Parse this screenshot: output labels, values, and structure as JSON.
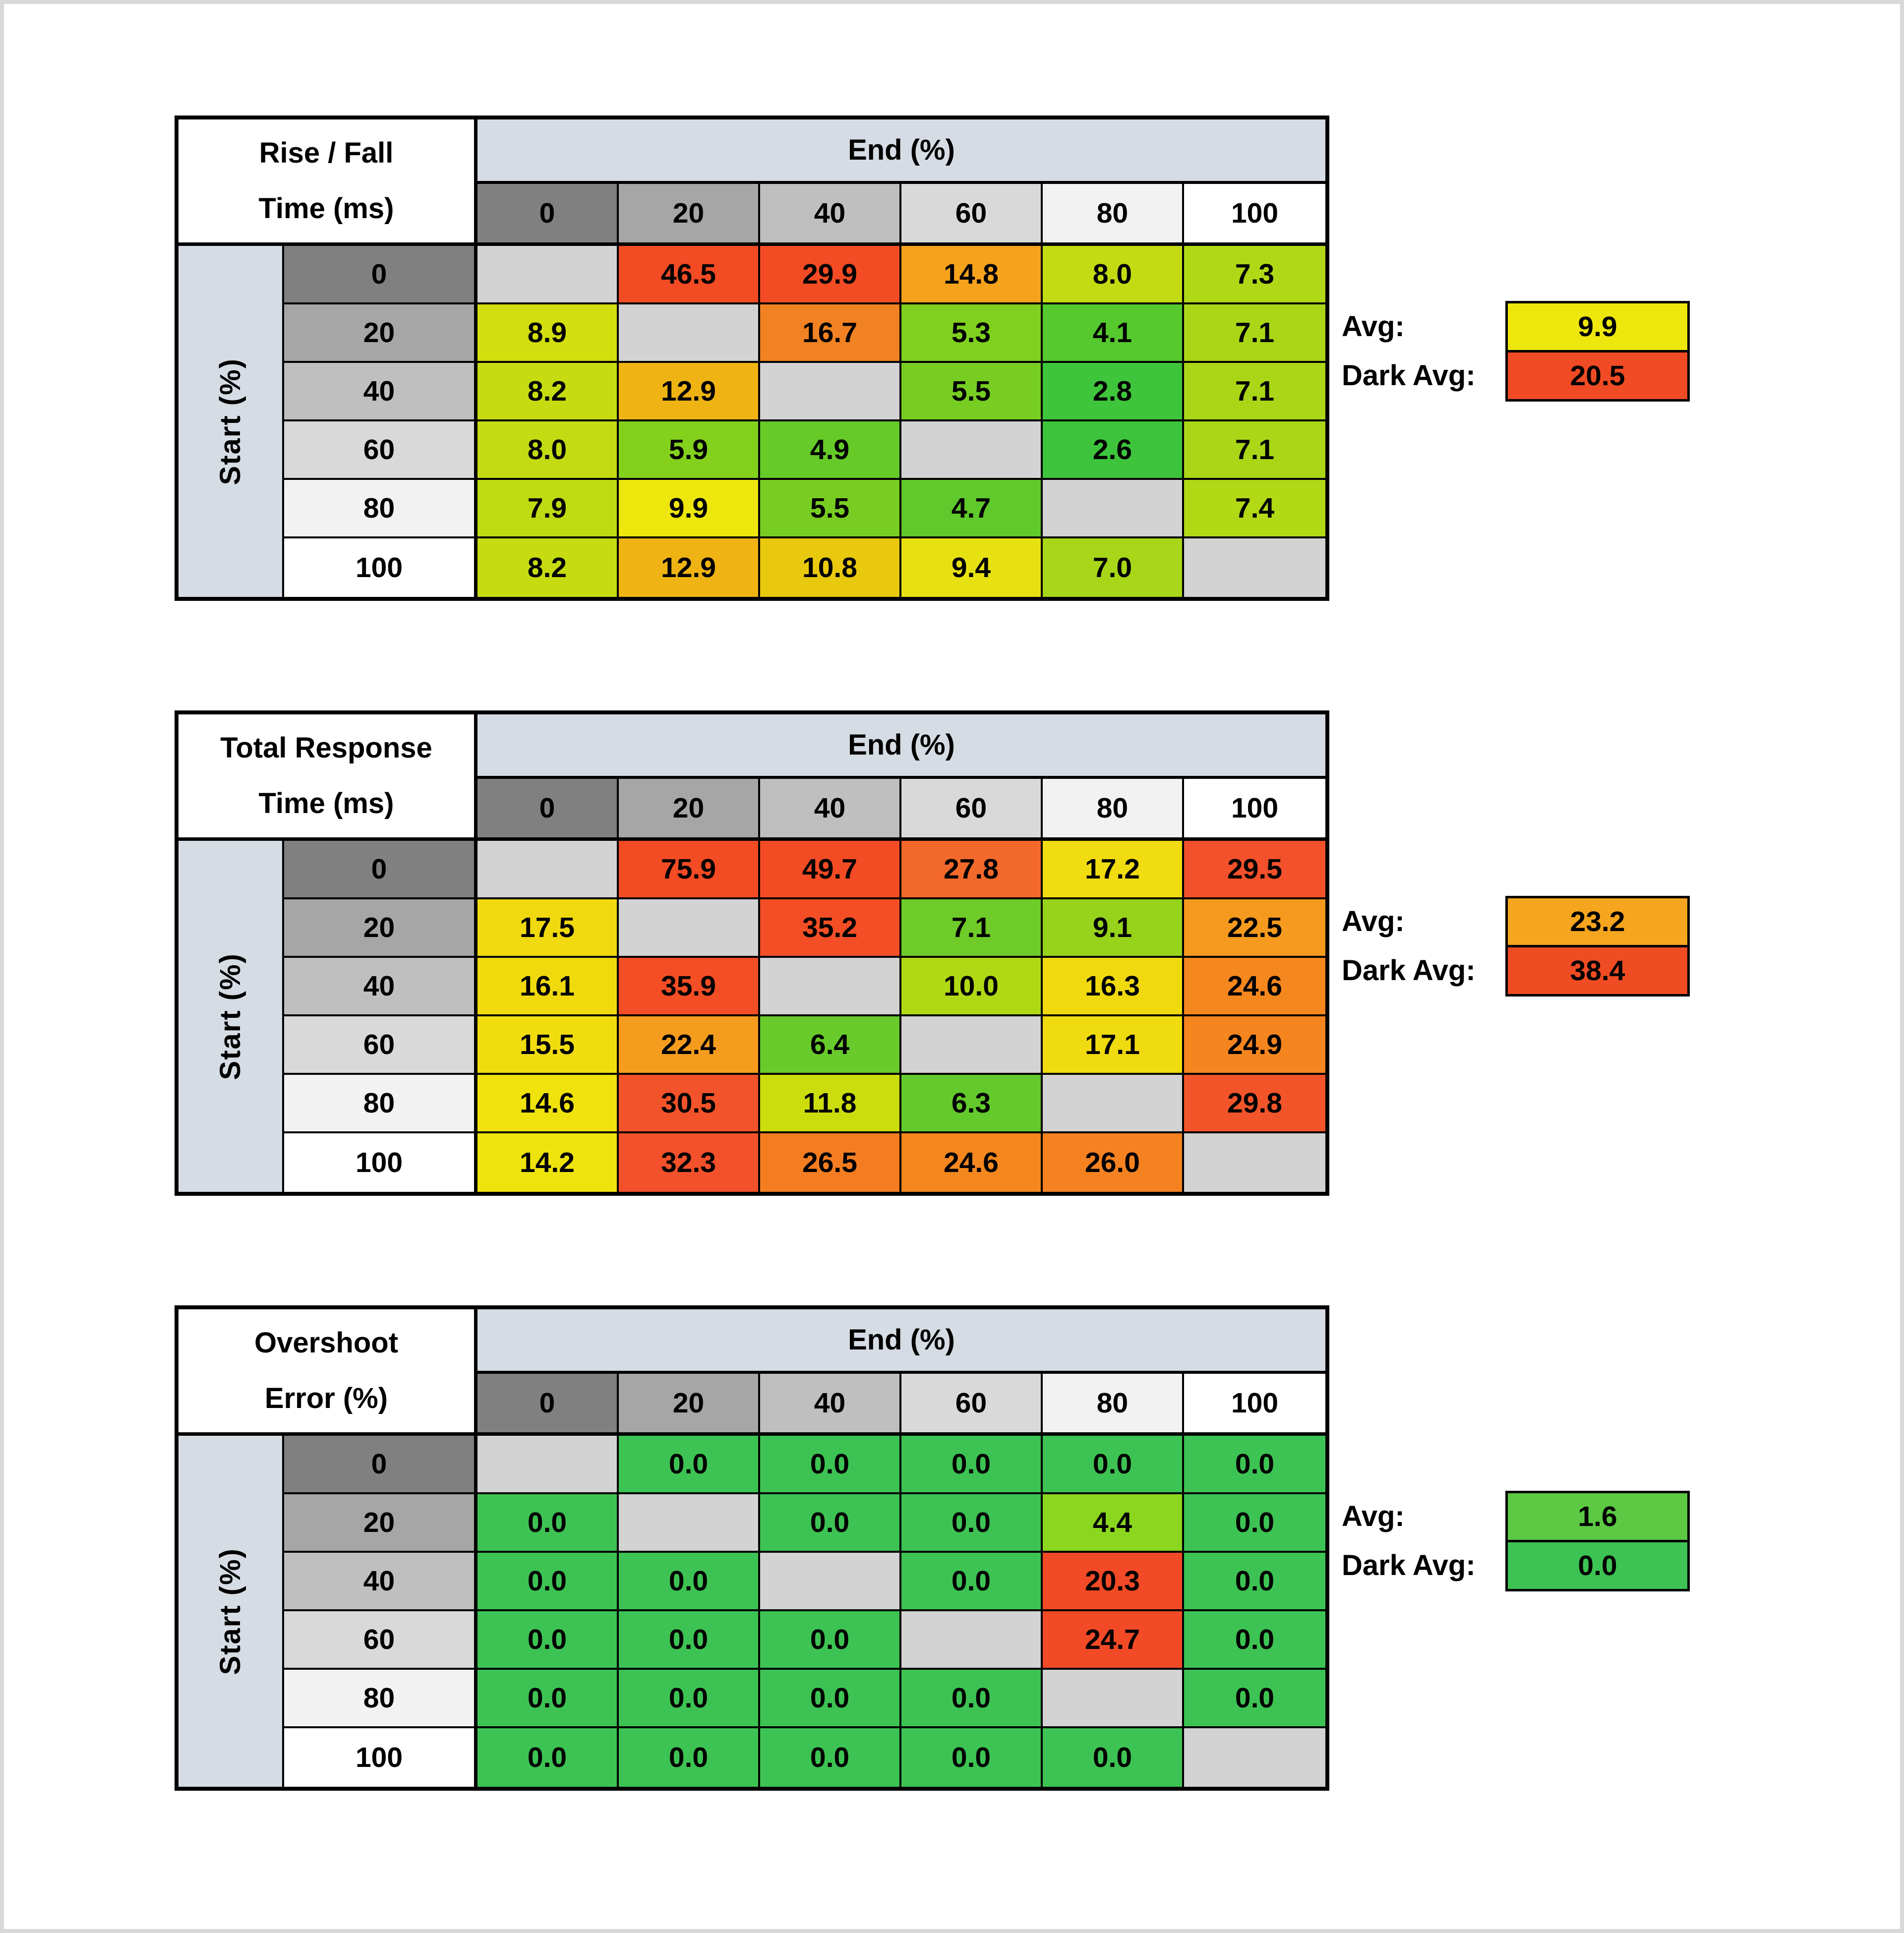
{
  "page": {
    "background": "#FFFFFF",
    "edge_color": "#D8D8D8"
  },
  "axis": {
    "end_label": "End (%)",
    "start_label": "Start (%)",
    "ticks": [
      "0",
      "20",
      "40",
      "60",
      "80",
      "100"
    ],
    "header_shades": [
      "#808080",
      "#A6A6A6",
      "#BFBFBF",
      "#D9D9D9",
      "#F2F2F2",
      "#FFFFFF"
    ],
    "banner_color": "#D6DCE4",
    "diagonal_color": "#D3D3D3"
  },
  "chart_data": [
    {
      "type": "heatmap",
      "id": "rise-fall-time",
      "title": "Rise / Fall Time (ms)",
      "title_lines": [
        "Rise / Fall",
        "Time (ms)"
      ],
      "x_label": "End (%)",
      "y_label": "Start (%)",
      "x_ticks": [
        0,
        20,
        40,
        60,
        80,
        100
      ],
      "y_ticks": [
        0,
        20,
        40,
        60,
        80,
        100
      ],
      "rows": [
        {
          "y": "0",
          "cells": [
            null,
            {
              "v": "46.5",
              "c": "#F34B24"
            },
            {
              "v": "29.9",
              "c": "#F34B24"
            },
            {
              "v": "14.8",
              "c": "#F5A21C"
            },
            {
              "v": "8.0",
              "c": "#C3DB12"
            },
            {
              "v": "7.3",
              "c": "#B0D816"
            }
          ]
        },
        {
          "y": "20",
          "cells": [
            {
              "v": "8.9",
              "c": "#D2DE0E"
            },
            null,
            {
              "v": "16.7",
              "c": "#F08223"
            },
            {
              "v": "5.3",
              "c": "#7FD01F"
            },
            {
              "v": "4.1",
              "c": "#55C92E"
            },
            {
              "v": "7.1",
              "c": "#AAD617"
            }
          ]
        },
        {
          "y": "40",
          "cells": [
            {
              "v": "8.2",
              "c": "#C6DC11"
            },
            {
              "v": "12.9",
              "c": "#EFB414"
            },
            null,
            {
              "v": "5.5",
              "c": "#77CD22"
            },
            {
              "v": "2.8",
              "c": "#3FC53B"
            },
            {
              "v": "7.1",
              "c": "#AAD617"
            }
          ]
        },
        {
          "y": "60",
          "cells": [
            {
              "v": "8.0",
              "c": "#C3DB12"
            },
            {
              "v": "5.9",
              "c": "#83D11D"
            },
            {
              "v": "4.9",
              "c": "#66CA28"
            },
            null,
            {
              "v": "2.6",
              "c": "#3DC43C"
            },
            {
              "v": "7.1",
              "c": "#AAD617"
            }
          ]
        },
        {
          "y": "80",
          "cells": [
            {
              "v": "7.9",
              "c": "#BEDA13"
            },
            {
              "v": "9.9",
              "c": "#EDE70D"
            },
            {
              "v": "5.5",
              "c": "#77CD22"
            },
            {
              "v": "4.7",
              "c": "#60C92B"
            },
            null,
            {
              "v": "7.4",
              "c": "#B2D816"
            }
          ]
        },
        {
          "y": "100",
          "cells": [
            {
              "v": "8.2",
              "c": "#C6DC11"
            },
            {
              "v": "12.9",
              "c": "#EFB414"
            },
            {
              "v": "10.8",
              "c": "#E8C90E"
            },
            {
              "v": "9.4",
              "c": "#E8E112"
            },
            {
              "v": "7.0",
              "c": "#A8D618"
            },
            null
          ]
        }
      ],
      "avg": {
        "label": "Avg:",
        "value": "9.9",
        "color": "#EDE70D"
      },
      "dark_avg": {
        "label": "Dark Avg:",
        "value": "20.5",
        "color": "#F04B24"
      }
    },
    {
      "type": "heatmap",
      "id": "total-response-time",
      "title": "Total Response Time (ms)",
      "title_lines": [
        "Total Response",
        "Time (ms)"
      ],
      "x_label": "End (%)",
      "y_label": "Start (%)",
      "x_ticks": [
        0,
        20,
        40,
        60,
        80,
        100
      ],
      "y_ticks": [
        0,
        20,
        40,
        60,
        80,
        100
      ],
      "rows": [
        {
          "y": "0",
          "cells": [
            null,
            {
              "v": "75.9",
              "c": "#F34B24"
            },
            {
              "v": "49.7",
              "c": "#F34B24"
            },
            {
              "v": "27.8",
              "c": "#F3682B"
            },
            {
              "v": "17.2",
              "c": "#F0DC10"
            },
            {
              "v": "29.5",
              "c": "#F2512B"
            }
          ]
        },
        {
          "y": "20",
          "cells": [
            {
              "v": "17.5",
              "c": "#F0D90E"
            },
            null,
            {
              "v": "35.2",
              "c": "#F34E25"
            },
            {
              "v": "7.1",
              "c": "#6FCB29"
            },
            {
              "v": "9.1",
              "c": "#97D31B"
            },
            {
              "v": "22.5",
              "c": "#F59A1E"
            }
          ]
        },
        {
          "y": "40",
          "cells": [
            {
              "v": "16.1",
              "c": "#F0DA0D"
            },
            {
              "v": "35.9",
              "c": "#F34E25"
            },
            null,
            {
              "v": "10.0",
              "c": "#B0D815"
            },
            {
              "v": "16.3",
              "c": "#F0D90F"
            },
            {
              "v": "24.6",
              "c": "#F5871F"
            }
          ]
        },
        {
          "y": "60",
          "cells": [
            {
              "v": "15.5",
              "c": "#F1DD0F"
            },
            {
              "v": "22.4",
              "c": "#F59C1E"
            },
            {
              "v": "6.4",
              "c": "#69CA2B"
            },
            null,
            {
              "v": "17.1",
              "c": "#F0DA10"
            },
            {
              "v": "24.9",
              "c": "#F5851F"
            }
          ]
        },
        {
          "y": "80",
          "cells": [
            {
              "v": "14.6",
              "c": "#EFE20D"
            },
            {
              "v": "30.5",
              "c": "#F2532A"
            },
            {
              "v": "11.8",
              "c": "#CBDD0C"
            },
            {
              "v": "6.3",
              "c": "#64C92C"
            },
            null,
            {
              "v": "29.8",
              "c": "#F2552A"
            }
          ]
        },
        {
          "y": "100",
          "cells": [
            {
              "v": "14.2",
              "c": "#EEE30D"
            },
            {
              "v": "32.3",
              "c": "#F2512B"
            },
            {
              "v": "26.5",
              "c": "#F47D22"
            },
            {
              "v": "24.6",
              "c": "#F5871F"
            },
            {
              "v": "26.0",
              "c": "#F58221"
            },
            null
          ]
        }
      ],
      "avg": {
        "label": "Avg:",
        "value": "23.2",
        "color": "#F5A51E"
      },
      "dark_avg": {
        "label": "Dark Avg:",
        "value": "38.4",
        "color": "#F04C24"
      }
    },
    {
      "type": "heatmap",
      "id": "overshoot-error",
      "title": "Overshoot Error (%)",
      "title_lines": [
        "Overshoot",
        "Error (%)"
      ],
      "x_label": "End (%)",
      "y_label": "Start (%)",
      "x_ticks": [
        0,
        20,
        40,
        60,
        80,
        100
      ],
      "y_ticks": [
        0,
        20,
        40,
        60,
        80,
        100
      ],
      "rows": [
        {
          "y": "0",
          "cells": [
            null,
            {
              "v": "0.0",
              "c": "#3DC353"
            },
            {
              "v": "0.0",
              "c": "#3DC353"
            },
            {
              "v": "0.0",
              "c": "#3DC353"
            },
            {
              "v": "0.0",
              "c": "#3DC353"
            },
            {
              "v": "0.0",
              "c": "#3DC353"
            }
          ]
        },
        {
          "y": "20",
          "cells": [
            {
              "v": "0.0",
              "c": "#3DC353"
            },
            null,
            {
              "v": "0.0",
              "c": "#3DC353"
            },
            {
              "v": "0.0",
              "c": "#3DC353"
            },
            {
              "v": "4.4",
              "c": "#8BD61F"
            },
            {
              "v": "0.0",
              "c": "#3DC353"
            }
          ]
        },
        {
          "y": "40",
          "cells": [
            {
              "v": "0.0",
              "c": "#3DC353"
            },
            {
              "v": "0.0",
              "c": "#3DC353"
            },
            null,
            {
              "v": "0.0",
              "c": "#3DC353"
            },
            {
              "v": "20.3",
              "c": "#F24A26"
            },
            {
              "v": "0.0",
              "c": "#3DC353"
            }
          ]
        },
        {
          "y": "60",
          "cells": [
            {
              "v": "0.0",
              "c": "#3DC353"
            },
            {
              "v": "0.0",
              "c": "#3DC353"
            },
            {
              "v": "0.0",
              "c": "#3DC353"
            },
            null,
            {
              "v": "24.7",
              "c": "#F24A26"
            },
            {
              "v": "0.0",
              "c": "#3DC353"
            }
          ]
        },
        {
          "y": "80",
          "cells": [
            {
              "v": "0.0",
              "c": "#3DC353"
            },
            {
              "v": "0.0",
              "c": "#3DC353"
            },
            {
              "v": "0.0",
              "c": "#3DC353"
            },
            {
              "v": "0.0",
              "c": "#3DC353"
            },
            null,
            {
              "v": "0.0",
              "c": "#3DC353"
            }
          ]
        },
        {
          "y": "100",
          "cells": [
            {
              "v": "0.0",
              "c": "#3DC353"
            },
            {
              "v": "0.0",
              "c": "#3DC353"
            },
            {
              "v": "0.0",
              "c": "#3DC353"
            },
            {
              "v": "0.0",
              "c": "#3DC353"
            },
            {
              "v": "0.0",
              "c": "#3DC353"
            },
            null
          ]
        }
      ],
      "avg": {
        "label": "Avg:",
        "value": "1.6",
        "color": "#5CC844"
      },
      "dark_avg": {
        "label": "Dark Avg:",
        "value": "0.0",
        "color": "#3DC353"
      }
    }
  ]
}
